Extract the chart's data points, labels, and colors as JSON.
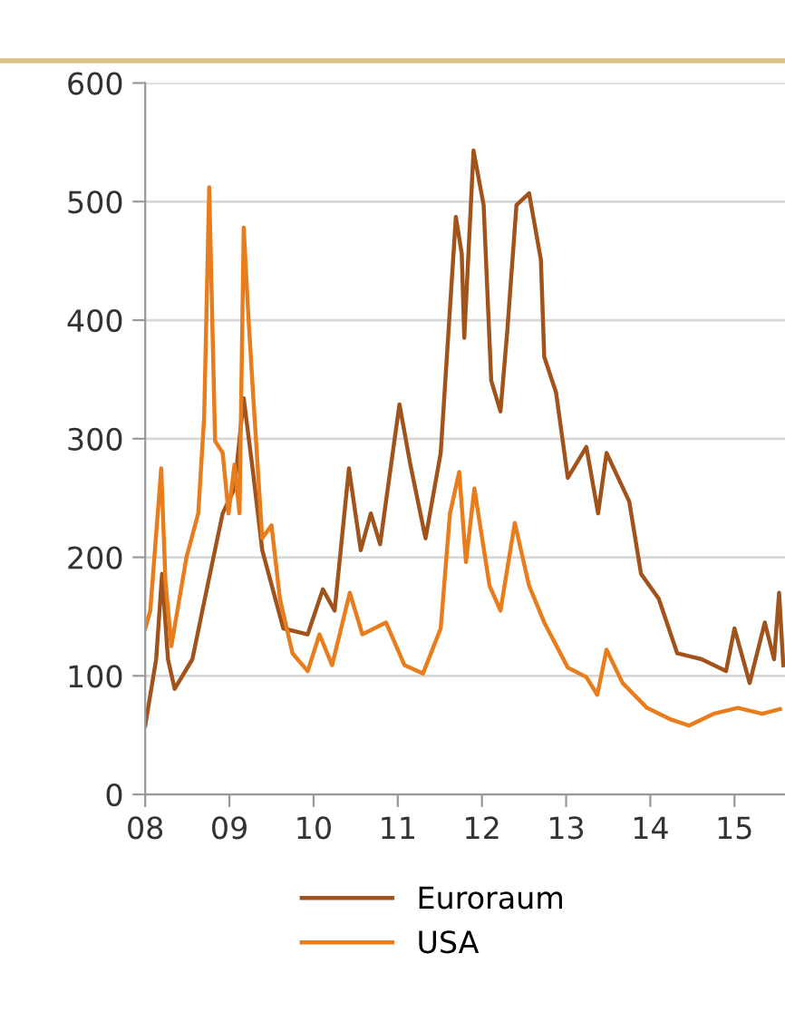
{
  "chart_data": {
    "type": "line",
    "xlim": [
      2008,
      2015.6
    ],
    "xticks": [
      {
        "value": 2008,
        "label": "08"
      },
      {
        "value": 2009,
        "label": "09"
      },
      {
        "value": 2010,
        "label": "10"
      },
      {
        "value": 2011,
        "label": "11"
      },
      {
        "value": 2012,
        "label": "12"
      },
      {
        "value": 2013,
        "label": "13"
      },
      {
        "value": 2014,
        "label": "14"
      },
      {
        "value": 2015,
        "label": "15"
      }
    ],
    "ylim": [
      0,
      600
    ],
    "yticks": [
      0,
      100,
      200,
      300,
      400,
      500,
      600
    ],
    "grid": "y",
    "legend": "bottom",
    "marker": "none",
    "line_style": "solid",
    "series": [
      {
        "name": "Euroraum",
        "color": "#a0541c",
        "x": [
          2008.0,
          2008.13,
          2008.2,
          2008.27,
          2008.35,
          2008.56,
          2008.74,
          2008.92,
          2009.06,
          2009.17,
          2009.28,
          2009.39,
          2009.64,
          2009.93,
          2010.11,
          2010.25,
          2010.42,
          2010.56,
          2010.68,
          2010.79,
          2011.02,
          2011.15,
          2011.33,
          2011.51,
          2011.69,
          2011.76,
          2011.79,
          2011.9,
          2012.02,
          2012.11,
          2012.22,
          2012.3,
          2012.41,
          2012.56,
          2012.7,
          2012.74,
          2012.88,
          2013.02,
          2013.24,
          2013.38,
          2013.48,
          2013.75,
          2013.89,
          2014.1,
          2014.32,
          2014.61,
          2014.9,
          2015.0,
          2015.18,
          2015.36,
          2015.47,
          2015.53,
          2015.58
        ],
        "values": [
          58,
          114,
          186,
          114,
          89,
          114,
          176,
          237,
          258,
          334,
          272,
          206,
          140,
          135,
          173,
          155,
          275,
          206,
          237,
          211,
          329,
          278,
          216,
          288,
          487,
          456,
          385,
          543,
          497,
          349,
          323,
          390,
          497,
          507,
          451,
          369,
          339,
          267,
          293,
          237,
          288,
          247,
          186,
          165,
          119,
          114,
          104,
          140,
          94,
          145,
          114,
          170,
          109
        ]
      },
      {
        "name": "USA",
        "color": "#e87d1e",
        "x": [
          2008.0,
          2008.06,
          2008.19,
          2008.24,
          2008.31,
          2008.49,
          2008.63,
          2008.7,
          2008.76,
          2008.83,
          2008.92,
          2008.99,
          2009.06,
          2009.12,
          2009.17,
          2009.22,
          2009.28,
          2009.39,
          2009.5,
          2009.6,
          2009.75,
          2009.93,
          2010.07,
          2010.22,
          2010.43,
          2010.58,
          2010.86,
          2011.08,
          2011.3,
          2011.51,
          2011.62,
          2011.73,
          2011.81,
          2011.91,
          2012.09,
          2012.22,
          2012.39,
          2012.56,
          2012.74,
          2013.02,
          2013.24,
          2013.37,
          2013.48,
          2013.67,
          2013.96,
          2014.25,
          2014.46,
          2014.75,
          2015.04,
          2015.33,
          2015.54
        ],
        "values": [
          140,
          155,
          275,
          180,
          125,
          200,
          237,
          318,
          512,
          298,
          288,
          237,
          278,
          237,
          478,
          410,
          339,
          216,
          227,
          165,
          119,
          104,
          135,
          109,
          170,
          135,
          145,
          109,
          102,
          140,
          237,
          272,
          196,
          258,
          176,
          155,
          229,
          176,
          145,
          107,
          99,
          84,
          122,
          94,
          73,
          63,
          58,
          68,
          73,
          68,
          72
        ]
      }
    ]
  }
}
